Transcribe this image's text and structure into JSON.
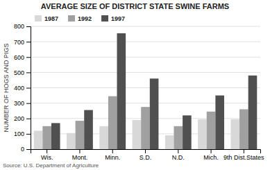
{
  "chart_data": {
    "type": "bar",
    "title": "AVERAGE SIZE OF DISTRICT STATE SWINE FARMS",
    "y_label": "NUMBER OF HOGS AND PIGS",
    "annotations": [
      "Source: U.S. Department of Agriculture"
    ],
    "categories": [
      "Wis.",
      "Mont.",
      "Minn.",
      "S.D.",
      "N.D.",
      "Mich.",
      "9th Dist.States"
    ],
    "series": [
      {
        "name": "1987",
        "color": "#d8d8d8",
        "values": [
          120,
          105,
          150,
          190,
          90,
          195,
          195
        ]
      },
      {
        "name": "1992",
        "color": "#a0a0a0",
        "values": [
          150,
          185,
          345,
          275,
          150,
          245,
          260
        ]
      },
      {
        "name": "1997",
        "color": "#505050",
        "values": [
          170,
          255,
          755,
          460,
          220,
          350,
          480
        ]
      }
    ],
    "ylim": [
      0,
      800
    ],
    "yticks": [
      0,
      100,
      200,
      300,
      400,
      500,
      600,
      700,
      800
    ],
    "grid": true,
    "legend": "upper left"
  }
}
